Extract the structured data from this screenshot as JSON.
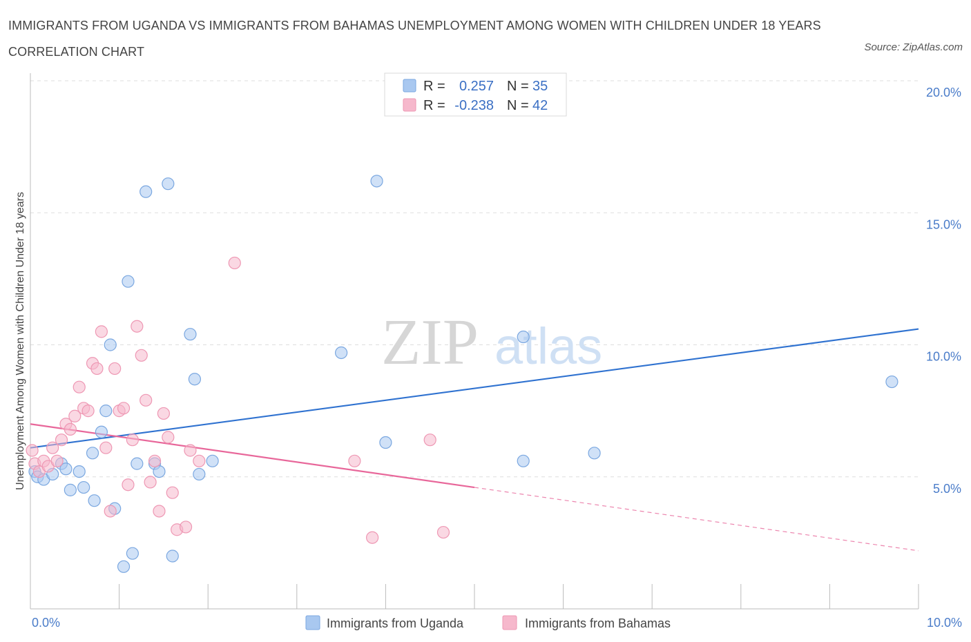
{
  "title": "IMMIGRANTS FROM UGANDA VS IMMIGRANTS FROM BAHAMAS UNEMPLOYMENT AMONG WOMEN WITH CHILDREN UNDER 18 YEARS CORRELATION CHART",
  "source": "Source: ZipAtlas.com",
  "watermark": {
    "zip": "ZIP",
    "atlas": "atlas"
  },
  "colors": {
    "uganda_fill": "#a9c8f0",
    "uganda_stroke": "#7aa7e0",
    "uganda_line": "#2f72d0",
    "bahamas_fill": "#f6b8cc",
    "bahamas_stroke": "#ee97b3",
    "bahamas_line": "#e8679a",
    "tick_text": "#4a7cc9",
    "grid": "#dddddd"
  },
  "legend_top": {
    "rows": [
      {
        "r_label": "R =",
        "r_value": "0.257",
        "n_label": "N =",
        "n_value": "35"
      },
      {
        "r_label": "R =",
        "r_value": "-0.238",
        "n_label": "N =",
        "n_value": "42"
      }
    ]
  },
  "legend_bottom": [
    "Immigrants from Uganda",
    "Immigrants from Bahamas"
  ],
  "chart_data": {
    "type": "scatter",
    "xlabel": "",
    "ylabel": "Unemployment Among Women with Children Under 18 years",
    "xlim": [
      0,
      10
    ],
    "ylim": [
      0,
      20
    ],
    "x_tick_labels": [
      "0.0%",
      "10.0%"
    ],
    "y_tick_labels": [
      "5.0%",
      "10.0%",
      "15.0%",
      "20.0%"
    ],
    "y_ticks": [
      5,
      10,
      15,
      20
    ],
    "grid": true,
    "legend_position": "top-center",
    "series": [
      {
        "name": "Immigrants from Uganda",
        "r": 0.257,
        "n": 35,
        "trend": {
          "x0": 0,
          "y0": 6.1,
          "x1": 10,
          "y1": 10.6,
          "solid_until": 10
        },
        "points": [
          [
            0.05,
            5.2
          ],
          [
            0.08,
            5.0
          ],
          [
            0.15,
            4.9
          ],
          [
            0.25,
            5.1
          ],
          [
            0.35,
            5.5
          ],
          [
            0.4,
            5.3
          ],
          [
            0.45,
            4.5
          ],
          [
            0.55,
            5.2
          ],
          [
            0.6,
            4.6
          ],
          [
            0.7,
            5.9
          ],
          [
            0.72,
            4.1
          ],
          [
            0.8,
            6.7
          ],
          [
            0.85,
            7.5
          ],
          [
            0.9,
            10.0
          ],
          [
            0.95,
            3.8
          ],
          [
            1.05,
            1.6
          ],
          [
            1.1,
            12.4
          ],
          [
            1.15,
            2.1
          ],
          [
            1.2,
            5.5
          ],
          [
            1.3,
            15.8
          ],
          [
            1.4,
            5.5
          ],
          [
            1.45,
            5.2
          ],
          [
            1.55,
            16.1
          ],
          [
            1.6,
            2.0
          ],
          [
            1.8,
            10.4
          ],
          [
            1.85,
            8.7
          ],
          [
            1.9,
            5.1
          ],
          [
            2.05,
            5.6
          ],
          [
            3.5,
            9.7
          ],
          [
            3.9,
            16.2
          ],
          [
            4.0,
            6.3
          ],
          [
            5.55,
            10.3
          ],
          [
            5.55,
            5.6
          ],
          [
            6.35,
            5.9
          ],
          [
            9.7,
            8.6
          ]
        ]
      },
      {
        "name": "Immigrants from Bahamas",
        "r": -0.238,
        "n": 42,
        "trend": {
          "x0": 0,
          "y0": 7.0,
          "x1": 10,
          "y1": 2.2,
          "solid_until": 5.0
        },
        "points": [
          [
            0.02,
            6.0
          ],
          [
            0.05,
            5.5
          ],
          [
            0.1,
            5.2
          ],
          [
            0.15,
            5.6
          ],
          [
            0.2,
            5.4
          ],
          [
            0.25,
            6.1
          ],
          [
            0.3,
            5.6
          ],
          [
            0.35,
            6.4
          ],
          [
            0.4,
            7.0
          ],
          [
            0.45,
            6.8
          ],
          [
            0.5,
            7.3
          ],
          [
            0.55,
            8.4
          ],
          [
            0.6,
            7.6
          ],
          [
            0.65,
            7.5
          ],
          [
            0.7,
            9.3
          ],
          [
            0.75,
            9.1
          ],
          [
            0.8,
            10.5
          ],
          [
            0.85,
            6.1
          ],
          [
            0.9,
            3.7
          ],
          [
            0.95,
            9.1
          ],
          [
            1.0,
            7.5
          ],
          [
            1.05,
            7.6
          ],
          [
            1.1,
            4.7
          ],
          [
            1.15,
            6.4
          ],
          [
            1.2,
            10.7
          ],
          [
            1.25,
            9.6
          ],
          [
            1.3,
            7.9
          ],
          [
            1.35,
            4.8
          ],
          [
            1.4,
            5.6
          ],
          [
            1.45,
            3.7
          ],
          [
            1.5,
            7.4
          ],
          [
            1.55,
            6.5
          ],
          [
            1.6,
            4.4
          ],
          [
            1.65,
            3.0
          ],
          [
            1.75,
            3.1
          ],
          [
            1.8,
            6.0
          ],
          [
            1.9,
            5.6
          ],
          [
            2.3,
            13.1
          ],
          [
            3.65,
            5.6
          ],
          [
            3.85,
            2.7
          ],
          [
            4.5,
            6.4
          ],
          [
            4.65,
            2.9
          ]
        ]
      }
    ]
  }
}
